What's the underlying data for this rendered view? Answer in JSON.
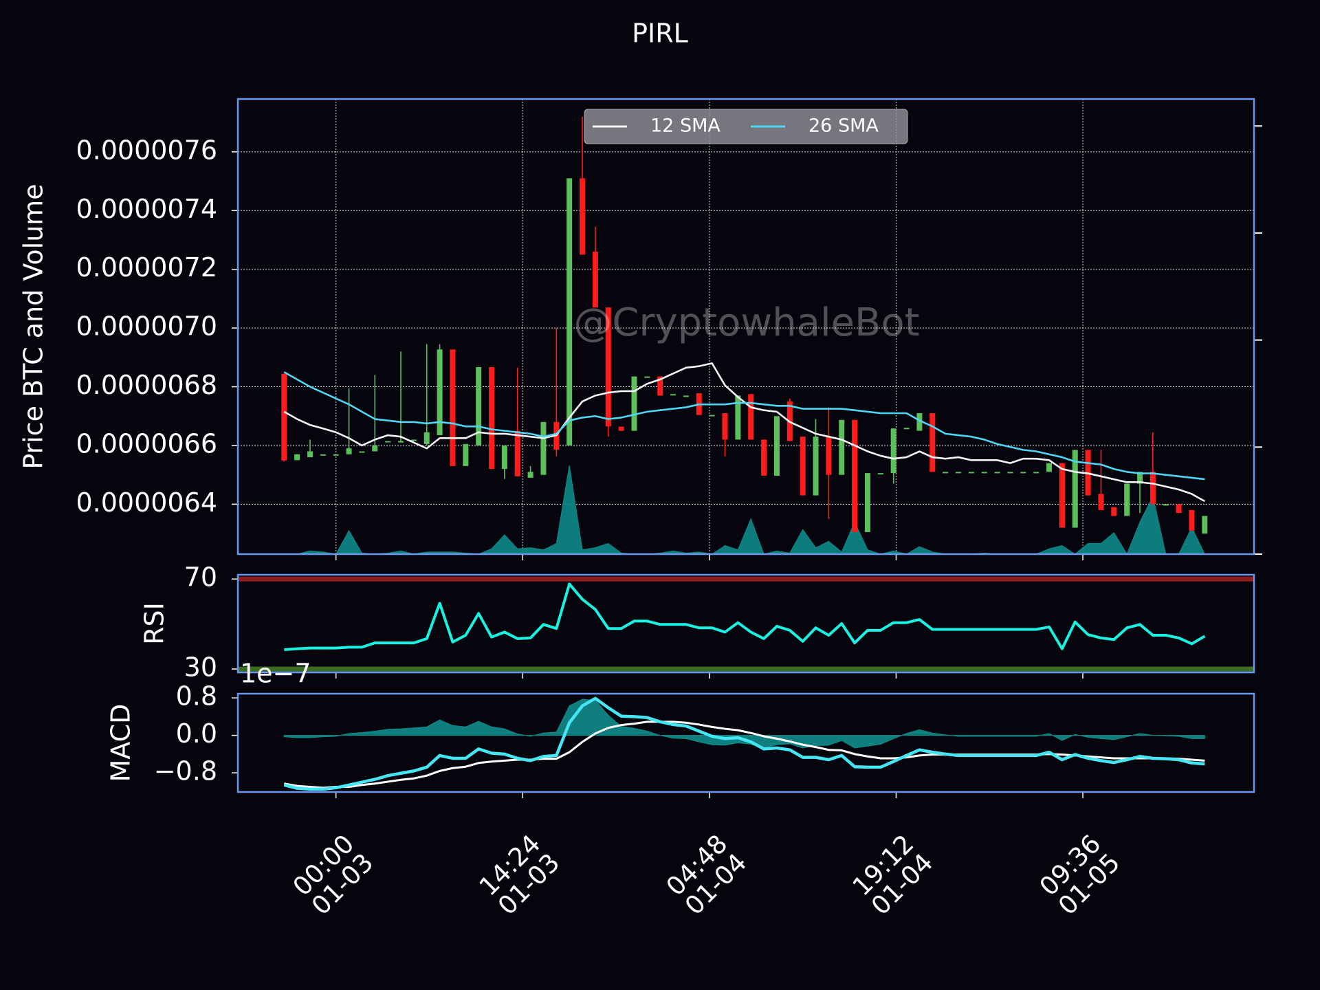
{
  "chart_data": [
    {
      "type": "candlestick",
      "title": "PIRL",
      "ylabel": "Price BTC and Volume",
      "watermark": "@CryptowhaleBot",
      "x": [
        "01-02 20:00",
        "01-02 21:00",
        "01-02 22:00",
        "01-02 23:00",
        "01-03 00:00",
        "01-03 01:00",
        "01-03 02:00",
        "01-03 03:00",
        "01-03 04:00",
        "01-03 05:00",
        "01-03 06:00",
        "01-03 07:00",
        "01-03 08:00",
        "01-03 09:00",
        "01-03 10:00",
        "01-03 11:00",
        "01-03 12:00",
        "01-03 13:00",
        "01-03 14:00",
        "01-03 15:00",
        "01-03 16:00",
        "01-03 17:00",
        "01-03 18:00",
        "01-03 19:00",
        "01-03 20:00",
        "01-03 21:00",
        "01-03 22:00",
        "01-03 23:00",
        "01-04 00:00",
        "01-04 01:00",
        "01-04 02:00",
        "01-04 03:00",
        "01-04 04:00",
        "01-04 05:00",
        "01-04 06:00",
        "01-04 07:00",
        "01-04 08:00",
        "01-04 09:00",
        "01-04 10:00",
        "01-04 11:00",
        "01-04 12:00",
        "01-04 13:00",
        "01-04 14:00",
        "01-04 15:00",
        "01-04 16:00",
        "01-04 17:00",
        "01-04 18:00",
        "01-04 19:00",
        "01-04 20:00",
        "01-04 21:00",
        "01-04 22:00",
        "01-04 23:00",
        "01-05 00:00",
        "01-05 01:00",
        "01-05 02:00",
        "01-05 03:00",
        "01-05 04:00",
        "01-05 05:00",
        "01-05 06:00",
        "01-05 07:00",
        "01-05 08:00",
        "01-05 09:00",
        "01-05 10:00",
        "01-05 11:00",
        "01-05 12:00",
        "01-05 13:00",
        "01-05 14:00",
        "01-05 15:00",
        "01-05 16:00",
        "01-05 17:00",
        "01-05 18:00",
        "01-05 19:00"
      ],
      "open": [
        6.844e-06,
        6.55e-06,
        6.56e-06,
        6.57e-06,
        6.57e-06,
        6.57e-06,
        6.58e-06,
        6.58e-06,
        6.615e-06,
        6.61e-06,
        6.62e-06,
        6.605e-06,
        6.635e-06,
        6.927e-06,
        6.53e-06,
        6.6e-06,
        6.867e-06,
        6.52e-06,
        6.65e-06,
        6.49e-06,
        6.5e-06,
        6.68e-06,
        6.6e-06,
        7.51e-06,
        7.26e-06,
        7.07e-06,
        6.664e-06,
        6.65e-06,
        6.835e-06,
        6.835e-06,
        6.775e-06,
        6.77e-06,
        6.778e-06,
        6.704e-06,
        6.71e-06,
        6.62e-06,
        6.775e-06,
        6.62e-06,
        6.497e-06,
        6.75e-06,
        6.63e-06,
        6.43e-06,
        6.63e-06,
        6.5e-06,
        6.687e-06,
        6.305e-06,
        6.506e-06,
        6.506e-06,
        6.658e-06,
        6.65e-06,
        6.71e-06,
        6.51e-06,
        6.51e-06,
        6.51e-06,
        6.51e-06,
        6.51e-06,
        6.51e-06,
        6.51e-06,
        6.51e-06,
        6.51e-06,
        6.54e-06,
        6.32e-06,
        6.585e-06,
        6.435e-06,
        6.39e-06,
        6.36e-06,
        6.47e-06,
        6.51e-06,
        6.4e-06,
        6.4e-06,
        6.38e-06,
        6.3e-06
      ],
      "high": [
        6.845e-06,
        6.57e-06,
        6.62e-06,
        6.57e-06,
        6.57e-06,
        6.795e-06,
        6.58e-06,
        6.84e-06,
        6.615e-06,
        6.92e-06,
        6.62e-06,
        6.945e-06,
        6.945e-06,
        6.927e-06,
        6.605e-06,
        6.867e-06,
        6.867e-06,
        6.6e-06,
        6.865e-06,
        6.53e-06,
        6.68e-06,
        7e-06,
        7.51e-06,
        7.72e-06,
        7.345e-06,
        7.07e-06,
        6.664e-06,
        6.835e-06,
        6.835e-06,
        6.835e-06,
        6.775e-06,
        6.77e-06,
        6.778e-06,
        6.704e-06,
        6.71e-06,
        6.77e-06,
        6.775e-06,
        6.62e-06,
        6.7e-06,
        6.76e-06,
        6.63e-06,
        6.69e-06,
        6.73e-06,
        6.687e-06,
        6.687e-06,
        6.506e-06,
        6.506e-06,
        6.658e-06,
        6.66e-06,
        6.71e-06,
        6.71e-06,
        6.51e-06,
        6.51e-06,
        6.51e-06,
        6.51e-06,
        6.51e-06,
        6.51e-06,
        6.51e-06,
        6.51e-06,
        6.54e-06,
        6.54e-06,
        6.585e-06,
        6.585e-06,
        6.585e-06,
        6.39e-06,
        6.47e-06,
        6.51e-06,
        6.645e-06,
        6.4e-06,
        6.4e-06,
        6.38e-06,
        6.36e-06
      ],
      "low": [
        6.545e-06,
        6.55e-06,
        6.56e-06,
        6.57e-06,
        6.57e-06,
        6.57e-06,
        6.58e-06,
        6.58e-06,
        6.615e-06,
        6.61e-06,
        6.62e-06,
        6.6e-06,
        6.635e-06,
        6.53e-06,
        6.53e-06,
        6.6e-06,
        6.52e-06,
        6.486e-06,
        6.495e-06,
        6.49e-06,
        6.5e-06,
        6.563e-06,
        6.6e-06,
        7.25e-06,
        7.07e-06,
        6.63e-06,
        6.65e-06,
        6.65e-06,
        6.835e-06,
        6.77e-06,
        6.775e-06,
        6.77e-06,
        6.704e-06,
        6.704e-06,
        6.563e-06,
        6.62e-06,
        6.62e-06,
        6.497e-06,
        6.497e-06,
        6.615e-06,
        6.43e-06,
        6.43e-06,
        6.35e-06,
        6.5e-06,
        6.305e-06,
        6.305e-06,
        6.506e-06,
        6.47e-06,
        6.658e-06,
        6.65e-06,
        6.51e-06,
        6.51e-06,
        6.51e-06,
        6.51e-06,
        6.51e-06,
        6.51e-06,
        6.51e-06,
        6.51e-06,
        6.51e-06,
        6.51e-06,
        6.32e-06,
        6.32e-06,
        6.43e-06,
        6.38e-06,
        6.36e-06,
        6.36e-06,
        6.37e-06,
        6.4e-06,
        6.4e-06,
        6.37e-06,
        6.31e-06,
        6.3e-06
      ],
      "close": [
        6.549e-06,
        6.57e-06,
        6.58e-06,
        6.57e-06,
        6.57e-06,
        6.59e-06,
        6.58e-06,
        6.6e-06,
        6.615e-06,
        6.615e-06,
        6.62e-06,
        6.645e-06,
        6.927e-06,
        6.53e-06,
        6.605e-06,
        6.867e-06,
        6.52e-06,
        6.6e-06,
        6.495e-06,
        6.51e-06,
        6.68e-06,
        6.586e-06,
        7.51e-06,
        7.25e-06,
        7.07e-06,
        6.665e-06,
        6.65e-06,
        6.835e-06,
        6.835e-06,
        6.77e-06,
        6.775e-06,
        6.77e-06,
        6.704e-06,
        6.704e-06,
        6.62e-06,
        6.77e-06,
        6.62e-06,
        6.497e-06,
        6.7e-06,
        6.615e-06,
        6.43e-06,
        6.63e-06,
        6.5e-06,
        6.687e-06,
        6.305e-06,
        6.506e-06,
        6.506e-06,
        6.658e-06,
        6.66e-06,
        6.71e-06,
        6.51e-06,
        6.51e-06,
        6.51e-06,
        6.51e-06,
        6.51e-06,
        6.51e-06,
        6.51e-06,
        6.51e-06,
        6.51e-06,
        6.54e-06,
        6.32e-06,
        6.585e-06,
        6.43e-06,
        6.38e-06,
        6.36e-06,
        6.47e-06,
        6.51e-06,
        6.4e-06,
        6.4e-06,
        6.37e-06,
        6.31e-06,
        6.36e-06
      ],
      "up_color": "#5cbf5c",
      "down_color": "#ff1c1c",
      "series": [
        {
          "name": "12 SMA",
          "color": "#f4f4f8",
          "values": [
            6.715e-06,
            6.69e-06,
            6.67e-06,
            6.658e-06,
            6.645e-06,
            6.625e-06,
            6.6e-06,
            6.62e-06,
            6.635e-06,
            6.63e-06,
            6.61e-06,
            6.59e-06,
            6.625e-06,
            6.625e-06,
            6.625e-06,
            6.645e-06,
            6.64e-06,
            6.64e-06,
            6.635e-06,
            6.63e-06,
            6.625e-06,
            6.635e-06,
            6.695e-06,
            6.75e-06,
            6.77e-06,
            6.78e-06,
            6.785e-06,
            6.785e-06,
            6.81e-06,
            6.825e-06,
            6.845e-06,
            6.865e-06,
            6.87e-06,
            6.88e-06,
            6.805e-06,
            6.765e-06,
            6.73e-06,
            6.72e-06,
            6.715e-06,
            6.68e-06,
            6.66e-06,
            6.64e-06,
            6.63e-06,
            6.62e-06,
            6.6e-06,
            6.58e-06,
            6.565e-06,
            6.555e-06,
            6.56e-06,
            6.58e-06,
            6.56e-06,
            6.555e-06,
            6.56e-06,
            6.55e-06,
            6.55e-06,
            6.55e-06,
            6.54e-06,
            6.555e-06,
            6.555e-06,
            6.55e-06,
            6.52e-06,
            6.51e-06,
            6.505e-06,
            6.495e-06,
            6.485e-06,
            6.475e-06,
            6.475e-06,
            6.47e-06,
            6.46e-06,
            6.45e-06,
            6.435e-06,
            6.41e-06
          ]
        },
        {
          "name": "26 SMA",
          "color": "#4fd6f2",
          "values": [
            6.85e-06,
            6.825e-06,
            6.8e-06,
            6.78e-06,
            6.76e-06,
            6.74e-06,
            6.715e-06,
            6.69e-06,
            6.685e-06,
            6.68e-06,
            6.68e-06,
            6.675e-06,
            6.68e-06,
            6.675e-06,
            6.665e-06,
            6.665e-06,
            6.655e-06,
            6.65e-06,
            6.645e-06,
            6.64e-06,
            6.63e-06,
            6.64e-06,
            6.685e-06,
            6.695e-06,
            6.7e-06,
            6.69e-06,
            6.695e-06,
            6.705e-06,
            6.715e-06,
            6.72e-06,
            6.725e-06,
            6.73e-06,
            6.74e-06,
            6.74e-06,
            6.74e-06,
            6.745e-06,
            6.745e-06,
            6.74e-06,
            6.735e-06,
            6.735e-06,
            6.725e-06,
            6.725e-06,
            6.725e-06,
            6.725e-06,
            6.72e-06,
            6.715e-06,
            6.71e-06,
            6.71e-06,
            6.71e-06,
            6.685e-06,
            6.665e-06,
            6.64e-06,
            6.635e-06,
            6.63e-06,
            6.62e-06,
            6.605e-06,
            6.595e-06,
            6.585e-06,
            6.58e-06,
            6.57e-06,
            6.56e-06,
            6.545e-06,
            6.54e-06,
            6.535e-06,
            6.52e-06,
            6.51e-06,
            6.505e-06,
            6.505e-06,
            6.5e-06,
            6.495e-06,
            6.49e-06,
            6.485e-06
          ]
        }
      ],
      "volume": {
        "axis": "y2",
        "color": "#0d8a8a",
        "values": [
          0,
          0,
          0.03,
          0.02,
          0,
          0.22,
          0.01,
          0,
          0.01,
          0.03,
          0,
          0.02,
          0.02,
          0.02,
          0.01,
          0,
          0.05,
          0.18,
          0.05,
          0.06,
          0.04,
          0.1,
          0.83,
          0.04,
          0.06,
          0.1,
          0.01,
          0,
          0,
          0.01,
          0.03,
          0.01,
          0.02,
          0,
          0.08,
          0.04,
          0.33,
          0,
          0.03,
          0.01,
          0.23,
          0.06,
          0.12,
          0.02,
          0.3,
          0.04,
          0,
          0.03,
          0,
          0.07,
          0.02,
          0,
          0,
          0,
          0.01,
          0,
          0,
          0,
          0,
          0.05,
          0.08,
          0,
          0.1,
          0.1,
          0.2,
          0,
          0.3,
          0.54,
          0,
          0,
          0.25,
          0
        ]
      },
      "xlim": [
        "01-02 16:26",
        "01-05 22:48"
      ],
      "xticks": [
        {
          "value": "01-03 00:00",
          "label": "00:00\n01-03"
        },
        {
          "value": "01-03 14:24",
          "label": "14:24\n01-03"
        },
        {
          "value": "01-04 04:48",
          "label": "04:48\n01-04"
        },
        {
          "value": "01-04 19:12",
          "label": "19:12\n01-04"
        },
        {
          "value": "01-05 09:36",
          "label": "09:36\n01-05"
        }
      ],
      "ylim": [
        6.23e-06,
        7.78e-06
      ],
      "yticks": [
        6.4e-06,
        6.6e-06,
        6.8e-06,
        {
          "value": 7e-06,
          "label": "0.0000070"
        },
        7.2e-06,
        7.4e-06,
        7.6e-06
      ],
      "y2lim": [
        0,
        4.252
      ],
      "y2ticks": [
        0,
        1,
        2,
        3,
        4
      ],
      "grid": true,
      "legend": "upper center"
    },
    {
      "type": "line",
      "ylabel": "RSI",
      "ylim": [
        28.5,
        71.9
      ],
      "yticks": [
        30,
        70
      ],
      "hlines": [
        {
          "value": 70,
          "color": "#8e1b1b"
        },
        {
          "value": 30,
          "color": "#3b6e20"
        }
      ],
      "series": [
        {
          "color": "#19f2e2",
          "values": [
            38.6,
            39,
            39.3,
            39.3,
            39.3,
            39.7,
            39.7,
            41.6,
            41.6,
            41.6,
            41.6,
            43.5,
            59.2,
            42,
            45,
            54.7,
            44.2,
            46.4,
            43.5,
            43.8,
            49.8,
            48,
            67.8,
            61,
            56.5,
            48,
            48,
            51.3,
            51.3,
            49.8,
            49.8,
            49.8,
            48.3,
            48.3,
            46.4,
            50.6,
            46.4,
            43.5,
            49,
            47.2,
            42.3,
            48.3,
            45,
            50.2,
            41.6,
            47.2,
            47.2,
            50.6,
            50.6,
            52,
            47.6,
            47.6,
            47.6,
            47.6,
            47.6,
            47.6,
            47.6,
            47.6,
            47.6,
            48.7,
            39,
            50.9,
            45.3,
            43.8,
            43.1,
            48.3,
            49.8,
            45,
            45,
            43.8,
            41.2,
            44.6
          ]
        }
      ]
    },
    {
      "type": "macd",
      "ylabel": "MACD",
      "offset_label": "1e−7",
      "ylim": [
        -1.21,
        0.89
      ],
      "yticks": [
        {
          "value": -0.8,
          "label": "−0.8"
        },
        {
          "value": 0,
          "label": "0.0"
        },
        0.8
      ],
      "histogram": {
        "color": "#0f8c8c",
        "values": [
          -0.03,
          -0.05,
          -0.05,
          -0.03,
          -0.02,
          0.04,
          0.06,
          0.09,
          0.13,
          0.14,
          0.16,
          0.18,
          0.33,
          0.21,
          0.18,
          0.3,
          0.18,
          0.14,
          0.03,
          -0.02,
          0.05,
          0.07,
          0.63,
          0.77,
          0.75,
          0.43,
          0.19,
          0.15,
          0.09,
          0,
          -0.06,
          -0.07,
          -0.14,
          -0.2,
          -0.21,
          -0.16,
          -0.19,
          -0.27,
          -0.2,
          -0.18,
          -0.27,
          -0.22,
          -0.21,
          -0.11,
          -0.27,
          -0.23,
          -0.19,
          -0.07,
          0.04,
          0.12,
          0.05,
          0.01,
          -0.02,
          -0.02,
          -0.02,
          -0.02,
          -0.02,
          -0.02,
          -0.02,
          0.04,
          -0.11,
          0.02,
          -0.04,
          -0.07,
          -0.09,
          -0.03,
          0.04,
          0,
          -0.01,
          -0.02,
          -0.07,
          -0.07
        ]
      },
      "series": [
        {
          "color": "#ffffff",
          "values": [
            -1.03,
            -1.08,
            -1.1,
            -1.12,
            -1.1,
            -1.1,
            -1.06,
            -1.03,
            -0.99,
            -0.95,
            -0.92,
            -0.86,
            -0.76,
            -0.7,
            -0.67,
            -0.59,
            -0.56,
            -0.54,
            -0.52,
            -0.52,
            -0.5,
            -0.5,
            -0.36,
            -0.14,
            0.04,
            0.16,
            0.22,
            0.25,
            0.29,
            0.29,
            0.29,
            0.27,
            0.23,
            0.18,
            0.14,
            0.11,
            0.05,
            -0.02,
            -0.07,
            -0.13,
            -0.2,
            -0.25,
            -0.31,
            -0.32,
            -0.4,
            -0.45,
            -0.49,
            -0.49,
            -0.47,
            -0.43,
            -0.41,
            -0.41,
            -0.41,
            -0.41,
            -0.41,
            -0.41,
            -0.41,
            -0.41,
            -0.41,
            -0.4,
            -0.41,
            -0.43,
            -0.45,
            -0.47,
            -0.49,
            -0.49,
            -0.49,
            -0.49,
            -0.49,
            -0.5,
            -0.52,
            -0.54
          ]
        },
        {
          "color": "#45e6f4",
          "values": [
            -1.06,
            -1.13,
            -1.15,
            -1.15,
            -1.12,
            -1.06,
            -1.0,
            -0.94,
            -0.86,
            -0.81,
            -0.76,
            -0.68,
            -0.43,
            -0.49,
            -0.49,
            -0.29,
            -0.38,
            -0.4,
            -0.49,
            -0.54,
            -0.45,
            -0.43,
            0.27,
            0.63,
            0.79,
            0.59,
            0.41,
            0.4,
            0.38,
            0.29,
            0.23,
            0.2,
            0.09,
            -0.02,
            -0.07,
            -0.05,
            -0.14,
            -0.29,
            -0.27,
            -0.31,
            -0.47,
            -0.47,
            -0.52,
            -0.43,
            -0.67,
            -0.68,
            -0.68,
            -0.56,
            -0.43,
            -0.31,
            -0.36,
            -0.4,
            -0.43,
            -0.43,
            -0.43,
            -0.43,
            -0.43,
            -0.43,
            -0.43,
            -0.36,
            -0.52,
            -0.41,
            -0.49,
            -0.54,
            -0.58,
            -0.52,
            -0.45,
            -0.49,
            -0.5,
            -0.52,
            -0.59,
            -0.61
          ]
        }
      ]
    }
  ]
}
